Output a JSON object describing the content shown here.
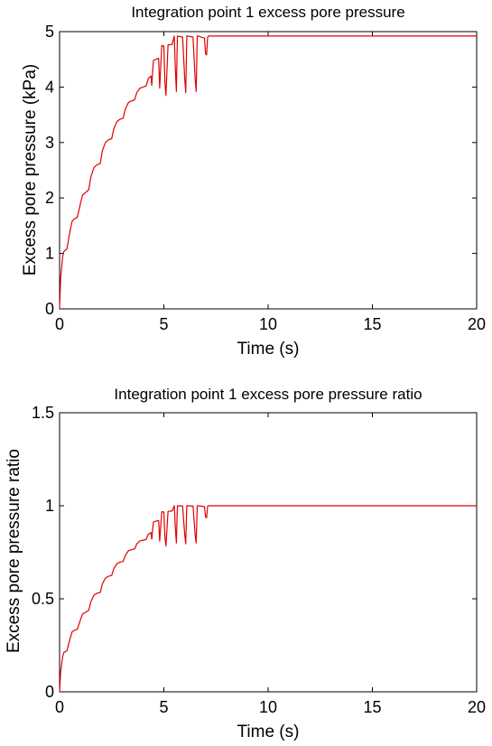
{
  "chart_data": [
    {
      "type": "line",
      "title": "Integration point 1 excess pore pressure",
      "xlabel": "Time (s)",
      "ylabel": "Excess pore pressure (kPa)",
      "xlim": [
        0,
        20
      ],
      "ylim": [
        0,
        5
      ],
      "xticks": [
        0,
        5,
        10,
        15,
        20
      ],
      "yticks": [
        0,
        1,
        2,
        3,
        4,
        5
      ],
      "xtick_labels": [
        "0",
        "5",
        "10",
        "15",
        "20"
      ],
      "ytick_labels": [
        "0",
        "1",
        "2",
        "3",
        "4",
        "5"
      ],
      "grid": false,
      "line_color": "#e00000",
      "series": [
        {
          "x": [
            0,
            0.05,
            0.15,
            0.2,
            0.25,
            0.35,
            0.5,
            0.6,
            0.7,
            0.85,
            1.0,
            1.1,
            1.25,
            1.4,
            1.5,
            1.65,
            1.8,
            1.95,
            2.05,
            2.2,
            2.35,
            2.5,
            2.6,
            2.75,
            2.9,
            3.05,
            3.15,
            3.3,
            3.45,
            3.6,
            3.7,
            3.85,
            4.0,
            4.15,
            4.25,
            4.38,
            4.42,
            4.5,
            4.62,
            4.75,
            4.8,
            4.9,
            5.0,
            5.05,
            5.1,
            5.2,
            5.4,
            5.5,
            5.55,
            5.6,
            5.65,
            5.9,
            6.0,
            6.05,
            6.1,
            6.15,
            6.4,
            6.5,
            6.55,
            6.6,
            6.65,
            6.95,
            7.0,
            7.05,
            7.1,
            7.15,
            20
          ],
          "y": [
            0,
            0.55,
            0.95,
            1.03,
            1.05,
            1.08,
            1.4,
            1.58,
            1.62,
            1.65,
            1.9,
            2.05,
            2.1,
            2.15,
            2.38,
            2.55,
            2.6,
            2.62,
            2.85,
            3.0,
            3.05,
            3.07,
            3.25,
            3.38,
            3.42,
            3.44,
            3.6,
            3.72,
            3.75,
            3.77,
            3.9,
            3.98,
            4.0,
            4.02,
            4.15,
            4.2,
            4.03,
            4.48,
            4.5,
            4.52,
            3.98,
            4.75,
            4.74,
            4.1,
            3.85,
            4.76,
            4.77,
            4.92,
            4.35,
            3.92,
            4.92,
            4.9,
            4.15,
            3.9,
            4.92,
            4.92,
            4.9,
            4.15,
            3.92,
            4.92,
            4.92,
            4.88,
            4.6,
            4.58,
            4.9,
            4.92,
            4.92
          ]
        }
      ]
    },
    {
      "type": "line",
      "title": "Integration point 1 excess pore pressure ratio",
      "xlabel": "Time (s)",
      "ylabel": "Excess pore pressure ratio",
      "xlim": [
        0,
        20
      ],
      "ylim": [
        0,
        1.5
      ],
      "xticks": [
        0,
        5,
        10,
        15,
        20
      ],
      "yticks": [
        0,
        0.5,
        1,
        1.5
      ],
      "xtick_labels": [
        "0",
        "5",
        "10",
        "15",
        "20"
      ],
      "ytick_labels": [
        "0",
        "0.5",
        "1",
        "1.5"
      ],
      "grid": false,
      "line_color": "#e00000",
      "series": [
        {
          "x": [
            0,
            0.05,
            0.15,
            0.2,
            0.25,
            0.35,
            0.5,
            0.6,
            0.7,
            0.85,
            1.0,
            1.1,
            1.25,
            1.4,
            1.5,
            1.65,
            1.8,
            1.95,
            2.05,
            2.2,
            2.35,
            2.5,
            2.6,
            2.75,
            2.9,
            3.05,
            3.15,
            3.3,
            3.45,
            3.6,
            3.7,
            3.85,
            4.0,
            4.15,
            4.25,
            4.38,
            4.42,
            4.5,
            4.62,
            4.75,
            4.8,
            4.9,
            5.0,
            5.05,
            5.1,
            5.2,
            5.4,
            5.5,
            5.55,
            5.6,
            5.65,
            5.9,
            6.0,
            6.05,
            6.1,
            6.15,
            6.4,
            6.5,
            6.55,
            6.6,
            6.65,
            6.95,
            7.0,
            7.05,
            7.1,
            7.15,
            20
          ],
          "y": [
            0,
            0.11,
            0.19,
            0.21,
            0.214,
            0.22,
            0.285,
            0.322,
            0.33,
            0.336,
            0.387,
            0.418,
            0.428,
            0.438,
            0.485,
            0.52,
            0.53,
            0.534,
            0.58,
            0.611,
            0.621,
            0.626,
            0.662,
            0.689,
            0.697,
            0.701,
            0.733,
            0.758,
            0.764,
            0.768,
            0.795,
            0.811,
            0.815,
            0.819,
            0.846,
            0.856,
            0.82,
            0.913,
            0.917,
            0.921,
            0.81,
            0.968,
            0.966,
            0.835,
            0.784,
            0.97,
            0.972,
            1.0,
            0.885,
            0.8,
            1.0,
            0.998,
            0.845,
            0.795,
            1.0,
            1.0,
            0.998,
            0.845,
            0.8,
            1.0,
            1.0,
            0.995,
            0.94,
            0.935,
            0.998,
            1.0,
            1.0
          ]
        }
      ]
    }
  ]
}
